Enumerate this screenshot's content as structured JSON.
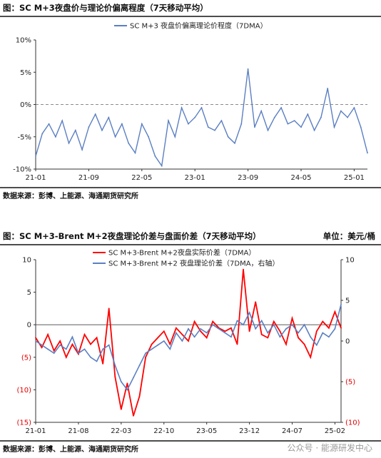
{
  "figure1": {
    "title": "图：SC M+3夜盘价与理论价偏离程度（7天移动平均）",
    "source": "数据来源：彭博、上能源、海通期货研究所"
  },
  "figure2": {
    "title": "图：SC M+3-Brent M+2夜盘理论价差与盘面价差（7天移动平均）",
    "unit": "单位：美元/桶",
    "source": "数据来源：彭博、上能源、海通期货研究所"
  },
  "watermark": "公众号 · 能源研发中心",
  "chart_data": [
    {
      "type": "line",
      "legend_position": "top-center",
      "ylim": [
        -10,
        10
      ],
      "y_ticks": [
        "-10%",
        "-5%",
        "0%",
        "5%",
        "10%"
      ],
      "x_ticks": [
        "21-01",
        "21-09",
        "22-05",
        "23-01",
        "23-09",
        "24-05",
        "25-01"
      ],
      "dashed_zero_line": true,
      "series": [
        {
          "name": "SC M+3 夜盘价偏离理论价程度（7DMA）",
          "color": "#5b7fc2",
          "x": [
            "21-01",
            "21-02",
            "21-03",
            "21-04",
            "21-05",
            "21-06",
            "21-07",
            "21-08",
            "21-09",
            "21-10",
            "21-11",
            "21-12",
            "22-01",
            "22-02",
            "22-03",
            "22-04",
            "22-05",
            "22-06",
            "22-07",
            "22-08",
            "22-09",
            "22-10",
            "22-11",
            "22-12",
            "23-01",
            "23-02",
            "23-03",
            "23-04",
            "23-05",
            "23-06",
            "23-07",
            "23-08",
            "23-09",
            "23-10",
            "23-11",
            "23-12",
            "24-01",
            "24-02",
            "24-03",
            "24-04",
            "24-05",
            "24-06",
            "24-07",
            "24-08",
            "24-09",
            "24-10",
            "24-11",
            "24-12",
            "25-01",
            "25-02",
            "25-03"
          ],
          "values": [
            -8,
            -4.5,
            -3,
            -5,
            -2.5,
            -6,
            -4,
            -7,
            -3.5,
            -1.5,
            -4,
            -2,
            -5,
            -3,
            -6,
            -7.5,
            -3,
            -5,
            -8,
            -9.5,
            -2.5,
            -5,
            -0.5,
            -3,
            -2,
            -0.5,
            -3.5,
            -4,
            -2.5,
            -5,
            -6,
            -3,
            5.5,
            -3.5,
            -1,
            -4,
            -2,
            -0.5,
            -3,
            -2.5,
            -3.5,
            -1.5,
            -4,
            -2,
            2.5,
            -3.5,
            -1,
            -2,
            -0.5,
            -3.5,
            -7.5
          ]
        }
      ]
    },
    {
      "type": "line",
      "legend_position": "top-center",
      "ylim_left": [
        -15,
        10
      ],
      "ylim_right": [
        -10,
        10
      ],
      "y_ticks_left": [
        "(15)",
        "(10)",
        "(5)",
        "0",
        "5",
        "10"
      ],
      "y_ticks_right": [
        "(10)",
        "(5)",
        "0",
        "5",
        "10"
      ],
      "x_ticks": [
        "21-01",
        "21-08",
        "22-03",
        "22-10",
        "23-05",
        "23-12",
        "24-07",
        "25-02"
      ],
      "series": [
        {
          "name": "SC M+3-Brent M+2夜盘实际价差（7DMA）",
          "color": "#ff0000",
          "axis": "left",
          "x": [
            "21-01",
            "21-02",
            "21-03",
            "21-04",
            "21-05",
            "21-06",
            "21-07",
            "21-08",
            "21-09",
            "21-10",
            "21-11",
            "21-12",
            "22-01",
            "22-02",
            "22-03",
            "22-04",
            "22-05",
            "22-06",
            "22-07",
            "22-08",
            "22-09",
            "22-10",
            "22-11",
            "22-12",
            "23-01",
            "23-02",
            "23-03",
            "23-04",
            "23-05",
            "23-06",
            "23-07",
            "23-08",
            "23-09",
            "23-10",
            "23-11",
            "23-12",
            "24-01",
            "24-02",
            "24-03",
            "24-04",
            "24-05",
            "24-06",
            "24-07",
            "24-08",
            "24-09",
            "24-10",
            "24-11",
            "24-12",
            "25-01",
            "25-02",
            "25-03"
          ],
          "values": [
            -2,
            -3.5,
            -1.5,
            -4,
            -2.5,
            -5,
            -3,
            -4.5,
            -1.5,
            -3,
            -2,
            -6,
            2.5,
            -8,
            -13,
            -9,
            -14,
            -11,
            -5,
            -3,
            -2,
            -1,
            -3,
            -0.5,
            -1.5,
            -2.5,
            0.5,
            -1,
            -2,
            0.5,
            -0.5,
            -1,
            -0.5,
            -3,
            8.5,
            -1,
            3.5,
            -1.5,
            -2,
            0.5,
            -1,
            -3,
            1,
            -2,
            -3,
            -5,
            -1,
            0.5,
            -0.5,
            2,
            -0.5
          ]
        },
        {
          "name": "SC M+3-Brent M+2 夜盘理论价差（7DMA，右轴）",
          "color": "#5b7fc2",
          "axis": "right",
          "x": [
            "21-01",
            "21-02",
            "21-03",
            "21-04",
            "21-05",
            "21-06",
            "21-07",
            "21-08",
            "21-09",
            "21-10",
            "21-11",
            "21-12",
            "22-01",
            "22-02",
            "22-03",
            "22-04",
            "22-05",
            "22-06",
            "22-07",
            "22-08",
            "22-09",
            "22-10",
            "22-11",
            "22-12",
            "23-01",
            "23-02",
            "23-03",
            "23-04",
            "23-05",
            "23-06",
            "23-07",
            "23-08",
            "23-09",
            "23-10",
            "23-11",
            "23-12",
            "24-01",
            "24-02",
            "24-03",
            "24-04",
            "24-05",
            "24-06",
            "24-07",
            "24-08",
            "24-09",
            "24-10",
            "24-11",
            "24-12",
            "25-01",
            "25-02",
            "25-03"
          ],
          "values": [
            0,
            -0.5,
            -1,
            -1.5,
            -0.5,
            -1,
            0.5,
            -1.5,
            -1,
            -2,
            -2.5,
            -1,
            -0.5,
            -3,
            -5,
            -6,
            -4.5,
            -3,
            -1.5,
            -1,
            -0.5,
            0,
            -1,
            1,
            0,
            1.5,
            0.5,
            1.5,
            1,
            2,
            1.5,
            1,
            0.5,
            2.5,
            2,
            3.5,
            1.5,
            2.5,
            1,
            2,
            0.5,
            1.5,
            2,
            1,
            2,
            0.5,
            -0.5,
            1,
            0.5,
            1.5,
            4.5
          ]
        }
      ]
    }
  ]
}
